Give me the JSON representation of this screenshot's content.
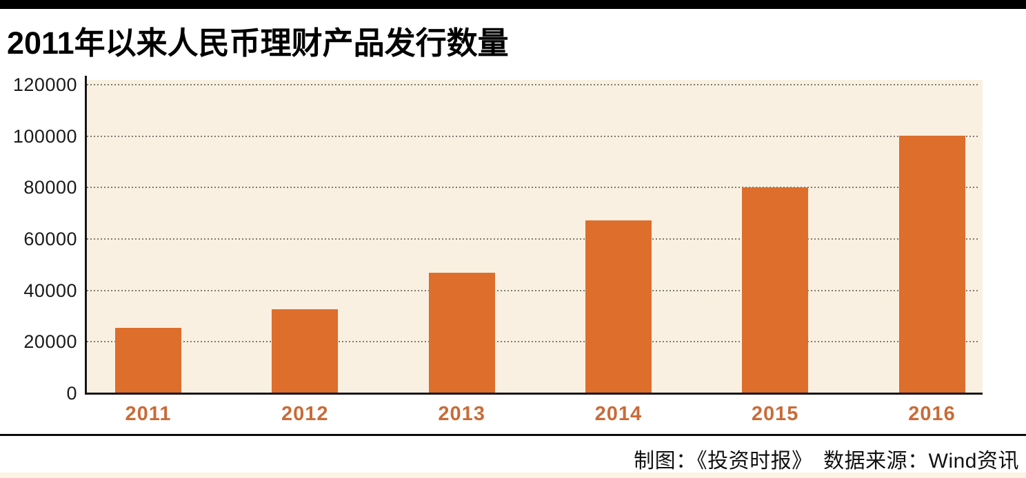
{
  "title": "2011年以来人民币理财产品发行数量",
  "footer": {
    "credit": "制图：《投资时报》　数据来源：Wind资讯"
  },
  "colors": {
    "top_accent_bar": "#000000",
    "bottom_strip": "#FBF3E3",
    "axis": "#151515",
    "ytick_text": "#1A1A1A",
    "title_text": "#000000",
    "credit_text": "#111111"
  },
  "chart_data": {
    "type": "bar",
    "title": "2011年以来人民币理财产品发行数量",
    "categories": [
      "2011",
      "2012",
      "2013",
      "2014",
      "2015",
      "2016"
    ],
    "values": [
      25400,
      32800,
      46800,
      67300,
      80000,
      100300
    ],
    "xlabel": "",
    "ylabel": "",
    "ylim": [
      0,
      120000
    ],
    "yticks": [
      0,
      20000,
      40000,
      60000,
      80000,
      100000,
      120000
    ],
    "ytick_labels": [
      "0",
      "20000",
      "40000",
      "60000",
      "80000",
      "100000",
      "120000"
    ],
    "grid": "horizontal-dotted",
    "legend": "none",
    "bar_color": "#DD6E2C",
    "plot_bg": "#FAF0E1",
    "gridline_color": "#6B6259",
    "xtick_color": "#C96B38"
  }
}
